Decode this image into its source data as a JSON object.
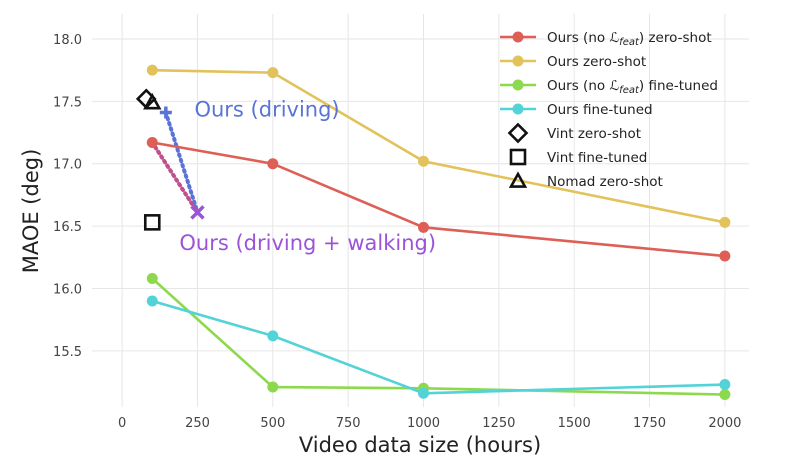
{
  "chart_data": {
    "type": "line",
    "title": "",
    "xlabel": "Video data size (hours)",
    "ylabel": "MAOE (deg)",
    "xlim": [
      -100,
      2080
    ],
    "ylim": [
      15.05,
      18.2
    ],
    "xticks": [
      0,
      250,
      500,
      750,
      1000,
      1250,
      1500,
      1750,
      2000
    ],
    "yticks": [
      15.5,
      16.0,
      16.5,
      17.0,
      17.5,
      18.0
    ],
    "grid": true,
    "legend_position": "top-right",
    "series": [
      {
        "name": "Ours (no ℒ_feat) zero-shot",
        "color": "#dd5f55",
        "marker": "circle",
        "x": [
          100,
          500,
          1000,
          2000
        ],
        "y": [
          17.17,
          17.0,
          16.49,
          16.26
        ]
      },
      {
        "name": "Ours zero-shot",
        "color": "#e2c25a",
        "marker": "circle",
        "x": [
          100,
          500,
          1000,
          2000
        ],
        "y": [
          17.75,
          17.73,
          17.02,
          16.53
        ]
      },
      {
        "name": "Ours (no ℒ_feat) fine-tuned",
        "color": "#8dd94e",
        "marker": "circle",
        "x": [
          100,
          500,
          1000,
          2000
        ],
        "y": [
          16.08,
          15.21,
          15.2,
          15.15
        ]
      },
      {
        "name": "Ours fine-tuned",
        "color": "#52d3d8",
        "marker": "circle",
        "x": [
          100,
          500,
          1000,
          2000
        ],
        "y": [
          15.9,
          15.62,
          15.16,
          15.23
        ]
      }
    ],
    "baselines": [
      {
        "name": "Vint zero-shot",
        "marker": "diamond",
        "x": 80,
        "y": 17.52
      },
      {
        "name": "Vint fine-tuned",
        "marker": "square",
        "x": 100,
        "y": 16.53
      },
      {
        "name": "Nomad zero-shot",
        "marker": "triangle",
        "x": 100,
        "y": 17.49
      }
    ],
    "annotations": [
      {
        "text": "Ours (driving)",
        "color": "#5a74d6",
        "x": 240,
        "y": 17.38
      },
      {
        "text": "Ours (driving + walking)",
        "color": "#9b54d8",
        "x": 190,
        "y": 16.31
      }
    ],
    "extra_markers": [
      {
        "group": "Ours (driving)",
        "color": "#5a74d6",
        "marker": "plus",
        "x": 145,
        "y": 17.41
      },
      {
        "group": "Ours (driving + walking)",
        "color": "#9b54d8",
        "marker": "x",
        "x": 250,
        "y": 16.61
      }
    ],
    "dotted_links": [
      {
        "color": "#5a74d6",
        "from": [
          145,
          17.41
        ],
        "to": [
          250,
          16.61
        ]
      },
      {
        "color": "#c0508c",
        "from": [
          100,
          17.17
        ],
        "to": [
          250,
          16.61
        ]
      }
    ]
  }
}
